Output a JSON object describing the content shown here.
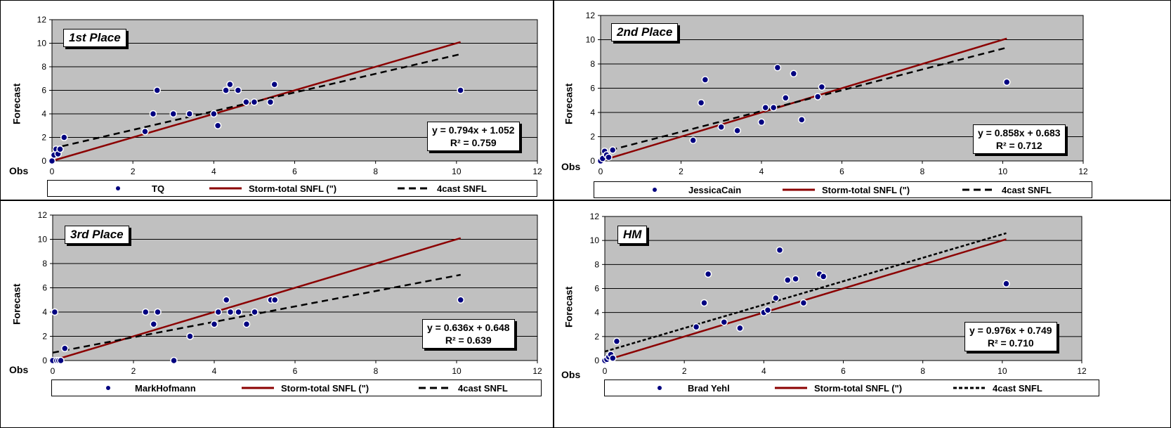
{
  "axis": {
    "ylabel": "Forecast",
    "xlabel": "Obs",
    "xticks": [
      "0",
      "2",
      "4",
      "6",
      "8",
      "10",
      "12"
    ],
    "yticks": [
      "0",
      "2",
      "4",
      "6",
      "8",
      "10",
      "12"
    ]
  },
  "legend": {
    "line_label": "Storm-total SNFL (\")",
    "trend_label": "4cast SNFL"
  },
  "colors": {
    "plot_bg": "#c0c0c0",
    "marker": "#000080",
    "line": "#8b0000",
    "trend": "#000000"
  },
  "chart_data": [
    {
      "type": "scatter",
      "place": "1st Place",
      "series": [
        {
          "name": "TQ",
          "points": [
            [
              0,
              0
            ],
            [
              0.05,
              0.5
            ],
            [
              0.1,
              1
            ],
            [
              0.15,
              0.6
            ],
            [
              0.2,
              1
            ],
            [
              0.3,
              2
            ],
            [
              2.3,
              2.5
            ],
            [
              2.5,
              4
            ],
            [
              2.6,
              6
            ],
            [
              3,
              4
            ],
            [
              3.4,
              4
            ],
            [
              4,
              4
            ],
            [
              4.1,
              3
            ],
            [
              4.3,
              6
            ],
            [
              4.4,
              6.5
            ],
            [
              4.6,
              6
            ],
            [
              4.8,
              5
            ],
            [
              5,
              5
            ],
            [
              5.4,
              5
            ],
            [
              5.5,
              6.5
            ],
            [
              10.1,
              6
            ]
          ]
        }
      ],
      "line": [
        [
          0,
          0
        ],
        [
          10.1,
          10.1
        ]
      ],
      "trend": {
        "slope": 0.794,
        "intercept": 1.052,
        "x_range": [
          0,
          10.1
        ]
      },
      "equation": "y = 0.794x + 1.052",
      "r2": "R² = 0.759",
      "xlim": [
        0,
        12
      ],
      "ylim": [
        0,
        12
      ]
    },
    {
      "type": "scatter",
      "place": "2nd Place",
      "series": [
        {
          "name": "JessicaCain",
          "points": [
            [
              0,
              0
            ],
            [
              0.05,
              0.2
            ],
            [
              0.1,
              0.8
            ],
            [
              0.15,
              0.5
            ],
            [
              0.2,
              0.3
            ],
            [
              0.3,
              0.9
            ],
            [
              2.3,
              1.7
            ],
            [
              2.5,
              4.8
            ],
            [
              2.6,
              6.7
            ],
            [
              3,
              2.8
            ],
            [
              3.4,
              2.5
            ],
            [
              4,
              3.2
            ],
            [
              4.1,
              4.4
            ],
            [
              4.3,
              4.4
            ],
            [
              4.4,
              7.7
            ],
            [
              4.6,
              5.2
            ],
            [
              4.8,
              7.2
            ],
            [
              5,
              3.4
            ],
            [
              5.4,
              5.3
            ],
            [
              5.5,
              6.1
            ],
            [
              10.1,
              6.5
            ]
          ]
        }
      ],
      "line": [
        [
          0,
          0
        ],
        [
          10.1,
          10.1
        ]
      ],
      "trend": {
        "slope": 0.858,
        "intercept": 0.683,
        "x_range": [
          0,
          10.1
        ]
      },
      "equation": "y = 0.858x + 0.683",
      "r2": "R² = 0.712",
      "xlim": [
        0,
        12
      ],
      "ylim": [
        0,
        12
      ]
    },
    {
      "type": "scatter",
      "place": "3rd Place",
      "series": [
        {
          "name": "MarkHofmann",
          "points": [
            [
              0,
              0
            ],
            [
              0.05,
              4
            ],
            [
              0.1,
              0
            ],
            [
              0.15,
              0
            ],
            [
              0.2,
              0
            ],
            [
              0.3,
              1
            ],
            [
              2.3,
              4
            ],
            [
              2.5,
              3
            ],
            [
              2.6,
              4
            ],
            [
              3,
              0
            ],
            [
              3.4,
              2
            ],
            [
              4,
              3
            ],
            [
              4.1,
              4
            ],
            [
              4.3,
              5
            ],
            [
              4.4,
              4
            ],
            [
              4.6,
              4
            ],
            [
              4.8,
              3
            ],
            [
              5,
              4
            ],
            [
              5.4,
              5
            ],
            [
              5.5,
              5
            ],
            [
              10.1,
              5
            ]
          ]
        }
      ],
      "line": [
        [
          0,
          0
        ],
        [
          10.1,
          10.1
        ]
      ],
      "trend": {
        "slope": 0.636,
        "intercept": 0.648,
        "x_range": [
          0,
          10.1
        ]
      },
      "equation": "y = 0.636x + 0.648",
      "r2": "R² = 0.639",
      "xlim": [
        0,
        12
      ],
      "ylim": [
        0,
        12
      ]
    },
    {
      "type": "scatter",
      "place": "HM",
      "series": [
        {
          "name": "Brad Yehl",
          "points": [
            [
              0,
              0
            ],
            [
              0.05,
              0.1
            ],
            [
              0.1,
              0.3
            ],
            [
              0.15,
              0.5
            ],
            [
              0.2,
              0.2
            ],
            [
              0.3,
              1.6
            ],
            [
              2.3,
              2.8
            ],
            [
              2.5,
              4.8
            ],
            [
              2.6,
              7.2
            ],
            [
              3,
              3.2
            ],
            [
              3.4,
              2.7
            ],
            [
              4,
              4
            ],
            [
              4.1,
              4.2
            ],
            [
              4.3,
              5.2
            ],
            [
              4.4,
              9.2
            ],
            [
              4.6,
              6.7
            ],
            [
              4.8,
              6.8
            ],
            [
              5,
              4.8
            ],
            [
              5.4,
              7.2
            ],
            [
              5.5,
              7
            ],
            [
              10.1,
              6.4
            ]
          ]
        }
      ],
      "line": [
        [
          0,
          0
        ],
        [
          10.1,
          10.1
        ]
      ],
      "trend": {
        "slope": 0.976,
        "intercept": 0.749,
        "x_range": [
          0,
          10.1
        ]
      },
      "equation": "y = 0.976x + 0.749",
      "r2": "R² = 0.710",
      "xlim": [
        0,
        12
      ],
      "ylim": [
        0,
        12
      ]
    }
  ]
}
